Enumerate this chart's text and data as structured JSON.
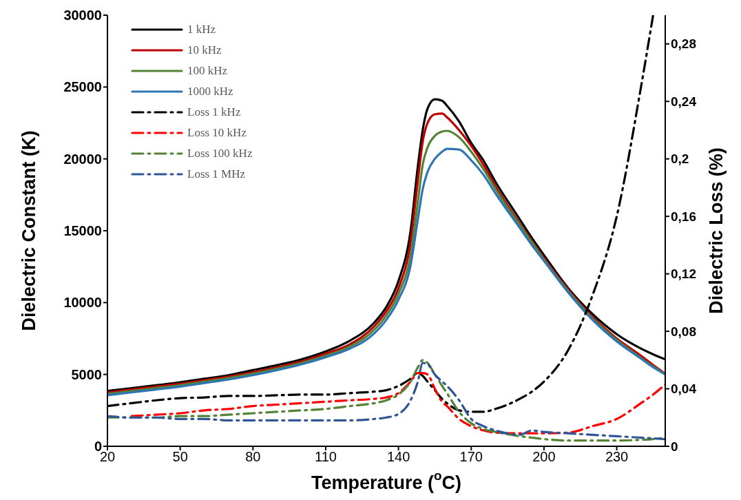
{
  "chart_data": {
    "type": "line",
    "xlabel": "Temperature ($^{o}$C)",
    "ylabel": "Dielectric Constant (K)",
    "y2label": "Dielectric Loss (%)",
    "x": [
      20,
      30,
      40,
      50,
      60,
      70,
      80,
      90,
      100,
      110,
      120,
      130,
      135,
      140,
      145,
      148,
      150,
      152,
      155,
      158,
      160,
      165,
      170,
      175,
      180,
      190,
      195,
      200,
      210,
      220,
      230,
      240,
      245,
      250
    ],
    "xlim": [
      20,
      250
    ],
    "xticks": [
      20,
      50,
      80,
      110,
      140,
      170,
      200,
      230
    ],
    "ylim": [
      0,
      30000
    ],
    "yticks": [
      0,
      5000,
      10000,
      15000,
      20000,
      25000,
      30000
    ],
    "y2lim": [
      0,
      0.3
    ],
    "y2ticks": [
      0,
      {
        "value": 0.04,
        "label": "0,04"
      },
      {
        "value": 0.08,
        "label": "0,08"
      },
      {
        "value": 0.12,
        "label": "0,12"
      },
      {
        "value": 0.16,
        "label": "0,16"
      },
      {
        "value": 0.2,
        "label": "0,2"
      },
      {
        "value": 0.24,
        "label": "0,24"
      },
      {
        "value": 0.28,
        "label": "0,28"
      }
    ],
    "legend": "top left",
    "marker": "none",
    "series": [
      {
        "name": "1 kHz",
        "color": "#000000",
        "line_style": "solid",
        "values": [
          3850,
          4050,
          4250,
          4450,
          4700,
          4950,
          5300,
          5650,
          6050,
          6600,
          7350,
          8600,
          9700,
          11500,
          15000,
          19500,
          22000,
          23500,
          24150,
          24050,
          23700,
          22600,
          21100,
          19900,
          18400,
          15800,
          14500,
          13300,
          11000,
          9200,
          7800,
          6800,
          6400,
          6050
        ]
      },
      {
        "name": "10 kHz",
        "color": "#c00000",
        "line_style": "solid",
        "values": [
          3750,
          3950,
          4150,
          4350,
          4600,
          4850,
          5150,
          5500,
          5900,
          6450,
          7100,
          8350,
          9400,
          11000,
          14200,
          18500,
          21200,
          22500,
          23100,
          23150,
          22900,
          22000,
          20900,
          19600,
          18100,
          15500,
          14300,
          13100,
          10900,
          9000,
          7500,
          6300,
          5650,
          5050
        ]
      },
      {
        "name": "100 kHz",
        "color": "#548235",
        "line_style": "solid",
        "values": [
          3650,
          3850,
          4050,
          4250,
          4500,
          4750,
          5050,
          5400,
          5800,
          6300,
          6950,
          8100,
          9100,
          10600,
          13300,
          17000,
          19600,
          20800,
          21600,
          21900,
          21950,
          21500,
          20500,
          19300,
          17900,
          15400,
          14200,
          13000,
          10800,
          8900,
          7400,
          6150,
          5550,
          5000
        ]
      },
      {
        "name": "1000 kHz",
        "color": "#2e75b6",
        "line_style": "solid",
        "values": [
          3550,
          3750,
          3950,
          4150,
          4400,
          4650,
          4950,
          5300,
          5700,
          6200,
          6800,
          7850,
          8800,
          10200,
          12600,
          15800,
          17900,
          19100,
          20000,
          20500,
          20700,
          20650,
          19900,
          18900,
          17600,
          15200,
          14000,
          12900,
          10700,
          8800,
          7300,
          6100,
          5500,
          5000
        ]
      },
      {
        "name": "Loss 1 kHz",
        "color": "#000000",
        "line_style": "dashed",
        "axis": "y2",
        "values": [
          0.028,
          0.03,
          0.032,
          0.0335,
          0.034,
          0.035,
          0.035,
          0.0355,
          0.036,
          0.036,
          0.037,
          0.038,
          0.039,
          0.042,
          0.047,
          0.051,
          0.049,
          0.045,
          0.039,
          0.033,
          0.03,
          0.025,
          0.024,
          0.024,
          0.026,
          0.033,
          0.038,
          0.045,
          0.067,
          0.105,
          0.16,
          0.25,
          0.3,
          null
        ]
      },
      {
        "name": "Loss 10 kHz",
        "color": "#ff0000",
        "line_style": "dashed",
        "axis": "y2",
        "values": [
          null,
          0.021,
          0.022,
          0.023,
          0.025,
          0.026,
          0.028,
          0.029,
          0.03,
          0.031,
          0.032,
          0.033,
          0.034,
          0.037,
          0.045,
          0.051,
          0.051,
          0.05,
          0.04,
          0.031,
          0.028,
          0.019,
          0.014,
          0.011,
          0.0095,
          0.009,
          0.009,
          0.009,
          0.0095,
          0.014,
          0.019,
          0.03,
          0.036,
          0.043
        ]
      },
      {
        "name": "Loss 100 kHz",
        "color": "#548235",
        "line_style": "dashed",
        "axis": "y2",
        "values": [
          0.02,
          0.02,
          0.02,
          0.021,
          0.021,
          0.022,
          0.023,
          0.024,
          0.025,
          0.026,
          0.028,
          0.03,
          0.032,
          0.036,
          0.045,
          0.055,
          0.06,
          0.058,
          0.05,
          0.042,
          0.037,
          0.024,
          0.016,
          0.012,
          0.01,
          0.007,
          0.006,
          0.005,
          0.004,
          0.004,
          0.004,
          0.0045,
          0.005,
          0.006
        ]
      },
      {
        "name": "Loss 1 MHz",
        "color": "#2f5597",
        "line_style": "dashed",
        "axis": "y2",
        "values": [
          0.021,
          0.02,
          0.02,
          0.019,
          0.019,
          0.018,
          0.018,
          0.018,
          0.018,
          0.018,
          0.018,
          0.019,
          0.02,
          0.0225,
          0.032,
          0.045,
          0.058,
          0.057,
          0.05,
          0.045,
          0.042,
          0.032,
          0.019,
          0.014,
          0.011,
          0.008,
          0.011,
          0.01,
          0.009,
          0.008,
          0.007,
          0.006,
          0.0055,
          0.005
        ]
      }
    ]
  }
}
